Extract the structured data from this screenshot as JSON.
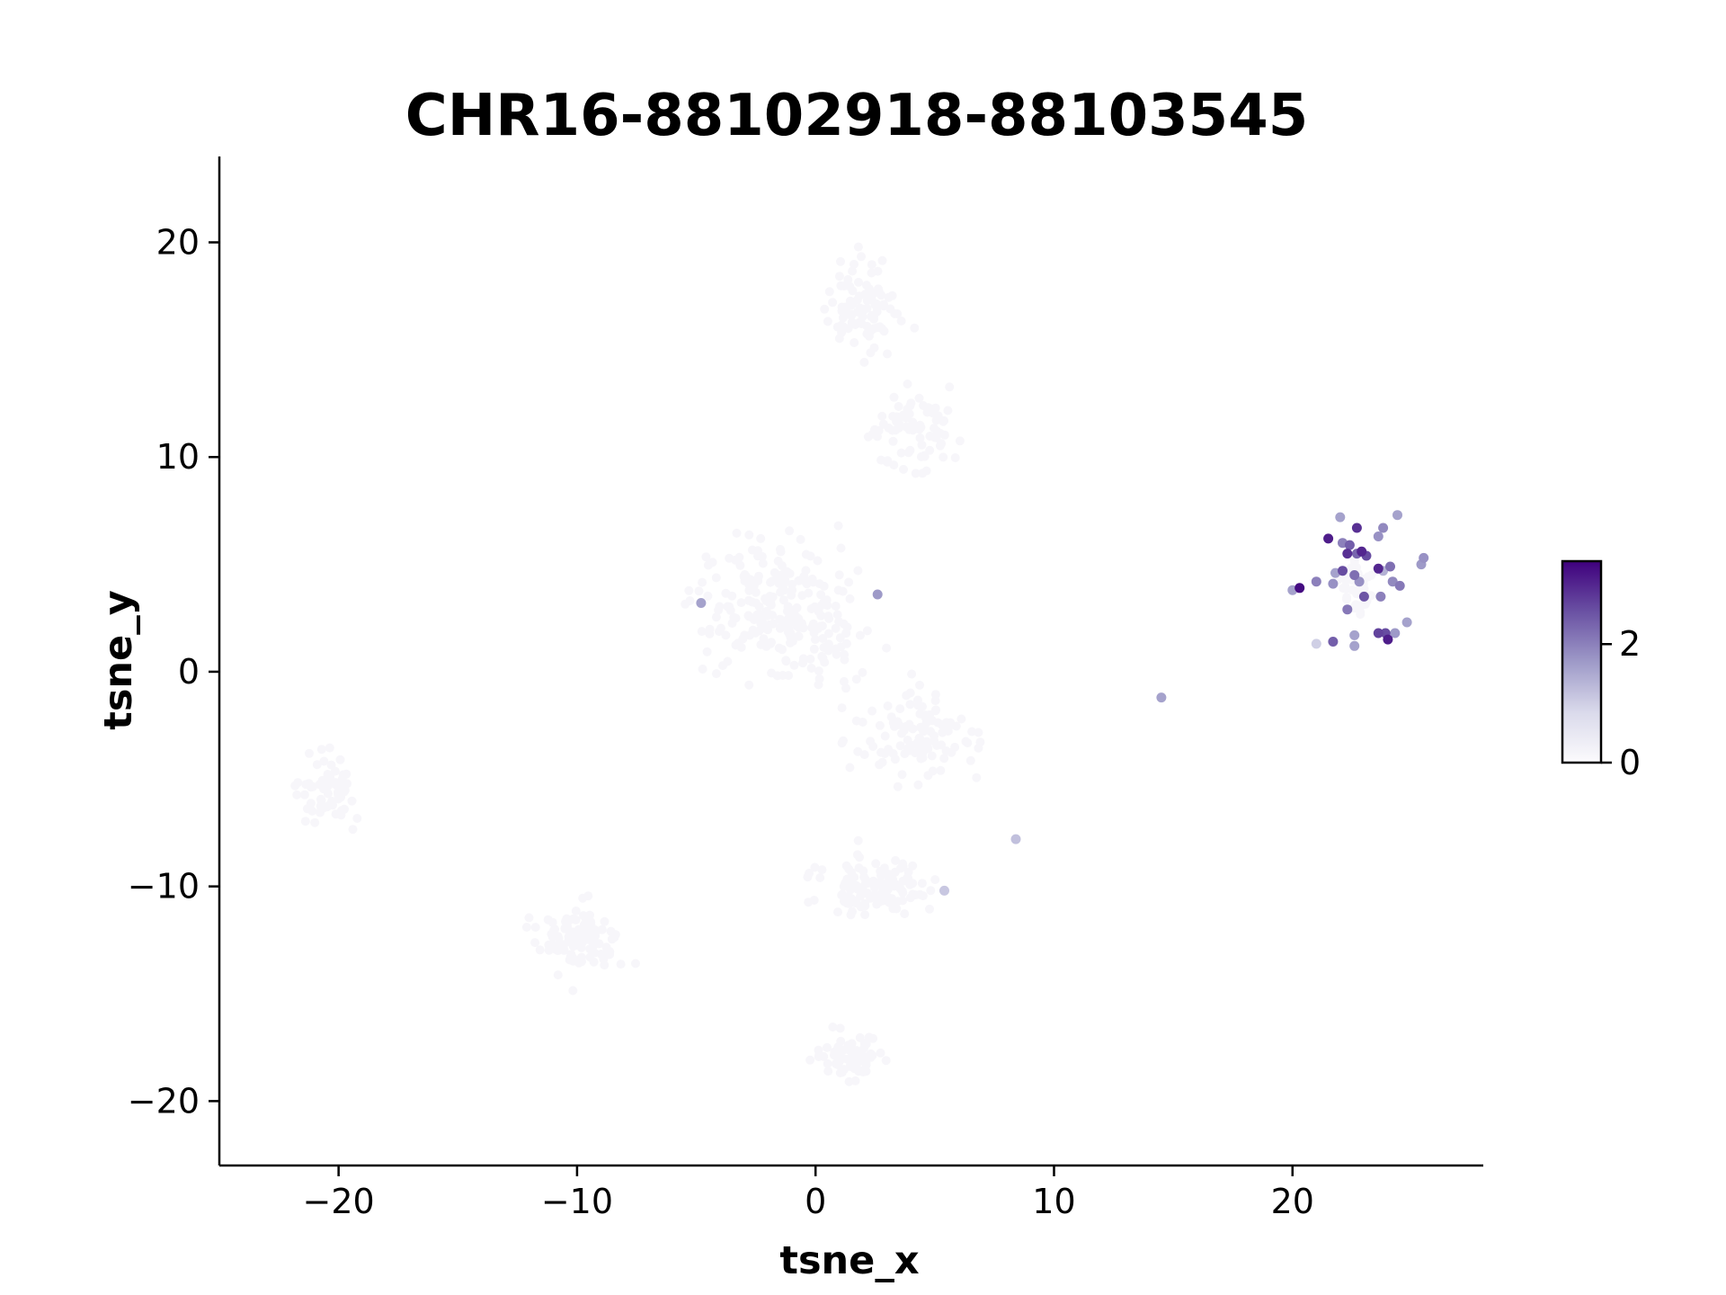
{
  "chart_data": {
    "type": "scatter",
    "title": "CHR16-88102918-88103545",
    "xlabel": "tsne_x",
    "ylabel": "tsne_y",
    "xlim": [
      -25,
      28
    ],
    "ylim": [
      -23,
      24
    ],
    "xticks": [
      -20,
      -10,
      0,
      10,
      20
    ],
    "xtick_labels": [
      "−20",
      "−10",
      "0",
      "10",
      "20"
    ],
    "yticks": [
      -20,
      -10,
      0,
      10,
      20
    ],
    "ytick_labels": [
      "−20",
      "−10",
      "0",
      "10",
      "20"
    ],
    "grid": false,
    "colormap": "Purples",
    "color_min": "#fcfbfd",
    "color_max": "#3f007d",
    "colorbar": {
      "vmin": 0,
      "vmax": 3.4,
      "ticks": [
        0,
        2
      ],
      "tick_labels": [
        "0",
        "2"
      ]
    },
    "background_clusters": [
      {
        "cx": -20.5,
        "cy": -5.5,
        "sx": 1.6,
        "sy": 2.0,
        "n": 70
      },
      {
        "cx": 2.0,
        "cy": 17.0,
        "sx": 2.0,
        "sy": 2.6,
        "n": 100
      },
      {
        "cx": 4.0,
        "cy": 11.0,
        "sx": 2.6,
        "sy": 2.4,
        "n": 80
      },
      {
        "cx": -1.5,
        "cy": 3.0,
        "sx": 4.5,
        "sy": 3.8,
        "n": 260
      },
      {
        "cx": 4.5,
        "cy": -3.0,
        "sx": 3.2,
        "sy": 2.6,
        "n": 110
      },
      {
        "cx": -10.0,
        "cy": -12.5,
        "sx": 2.0,
        "sy": 2.0,
        "n": 110
      },
      {
        "cx": 2.5,
        "cy": -10.0,
        "sx": 3.2,
        "sy": 1.8,
        "n": 120
      },
      {
        "cx": 1.5,
        "cy": -18.0,
        "sx": 1.7,
        "sy": 1.4,
        "n": 70
      },
      {
        "cx": 22.8,
        "cy": 4.0,
        "sx": 1.3,
        "sy": 1.6,
        "n": 40
      }
    ],
    "points": [
      {
        "x": -4.8,
        "y": 3.2,
        "v": 1.6
      },
      {
        "x": 2.6,
        "y": 3.6,
        "v": 1.7
      },
      {
        "x": 14.5,
        "y": -1.2,
        "v": 1.6
      },
      {
        "x": 8.4,
        "y": -7.8,
        "v": 1.2
      },
      {
        "x": 5.4,
        "y": -10.2,
        "v": 1.1
      },
      {
        "x": 22.0,
        "y": 7.2,
        "v": 1.6
      },
      {
        "x": 22.7,
        "y": 6.7,
        "v": 2.9
      },
      {
        "x": 23.8,
        "y": 6.7,
        "v": 1.9
      },
      {
        "x": 24.4,
        "y": 7.3,
        "v": 1.6
      },
      {
        "x": 21.5,
        "y": 6.2,
        "v": 3.1
      },
      {
        "x": 22.1,
        "y": 6.0,
        "v": 2.0
      },
      {
        "x": 22.4,
        "y": 5.9,
        "v": 2.4
      },
      {
        "x": 23.6,
        "y": 6.3,
        "v": 1.8
      },
      {
        "x": 22.3,
        "y": 5.5,
        "v": 2.9
      },
      {
        "x": 22.7,
        "y": 5.5,
        "v": 2.3
      },
      {
        "x": 22.9,
        "y": 5.6,
        "v": 3.0
      },
      {
        "x": 23.1,
        "y": 5.4,
        "v": 2.6
      },
      {
        "x": 25.4,
        "y": 5.0,
        "v": 1.7
      },
      {
        "x": 25.5,
        "y": 5.3,
        "v": 1.8
      },
      {
        "x": 21.8,
        "y": 4.6,
        "v": 1.6
      },
      {
        "x": 22.1,
        "y": 4.7,
        "v": 2.6
      },
      {
        "x": 22.6,
        "y": 4.5,
        "v": 2.2
      },
      {
        "x": 22.8,
        "y": 4.2,
        "v": 1.8
      },
      {
        "x": 23.6,
        "y": 4.8,
        "v": 3.0
      },
      {
        "x": 23.8,
        "y": 4.7,
        "v": 1.4
      },
      {
        "x": 24.1,
        "y": 4.9,
        "v": 2.2
      },
      {
        "x": 24.2,
        "y": 4.2,
        "v": 1.9
      },
      {
        "x": 24.5,
        "y": 4.0,
        "v": 2.1
      },
      {
        "x": 21.0,
        "y": 4.2,
        "v": 2.0
      },
      {
        "x": 21.7,
        "y": 4.1,
        "v": 1.8
      },
      {
        "x": 20.0,
        "y": 3.8,
        "v": 1.6
      },
      {
        "x": 20.3,
        "y": 3.9,
        "v": 3.3
      },
      {
        "x": 23.0,
        "y": 3.5,
        "v": 2.5
      },
      {
        "x": 23.7,
        "y": 3.5,
        "v": 2.0
      },
      {
        "x": 22.3,
        "y": 2.9,
        "v": 2.1
      },
      {
        "x": 24.8,
        "y": 2.3,
        "v": 1.6
      },
      {
        "x": 23.6,
        "y": 1.8,
        "v": 2.7
      },
      {
        "x": 23.9,
        "y": 1.8,
        "v": 2.6
      },
      {
        "x": 24.3,
        "y": 1.8,
        "v": 1.7
      },
      {
        "x": 22.6,
        "y": 1.7,
        "v": 1.6
      },
      {
        "x": 24.0,
        "y": 1.5,
        "v": 3.1
      },
      {
        "x": 21.0,
        "y": 1.3,
        "v": 1.0
      },
      {
        "x": 21.7,
        "y": 1.4,
        "v": 2.4
      },
      {
        "x": 22.6,
        "y": 1.2,
        "v": 1.6
      }
    ]
  }
}
